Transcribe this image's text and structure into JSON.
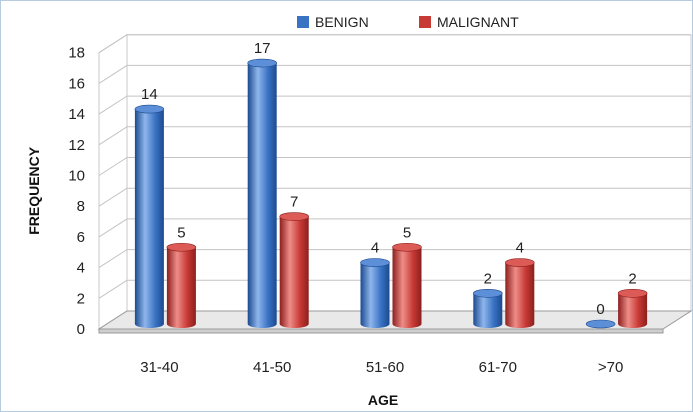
{
  "chart_data": {
    "type": "bar",
    "categories": [
      "31-40",
      "41-50",
      "51-60",
      "61-70",
      ">70"
    ],
    "series": [
      {
        "name": "BENIGN",
        "values": [
          14,
          17,
          4,
          2,
          0
        ],
        "color": "#3a73c4"
      },
      {
        "name": "MALIGNANT",
        "values": [
          5,
          7,
          5,
          4,
          2
        ],
        "color": "#c83a36"
      }
    ],
    "xlabel": "AGE",
    "ylabel": "FREQUENCY",
    "ylim": [
      0,
      18
    ],
    "yticks": [
      0,
      2,
      4,
      6,
      8,
      10,
      12,
      14,
      16,
      18
    ],
    "grid": true,
    "legend": "top",
    "style": "3d-cylinder"
  }
}
